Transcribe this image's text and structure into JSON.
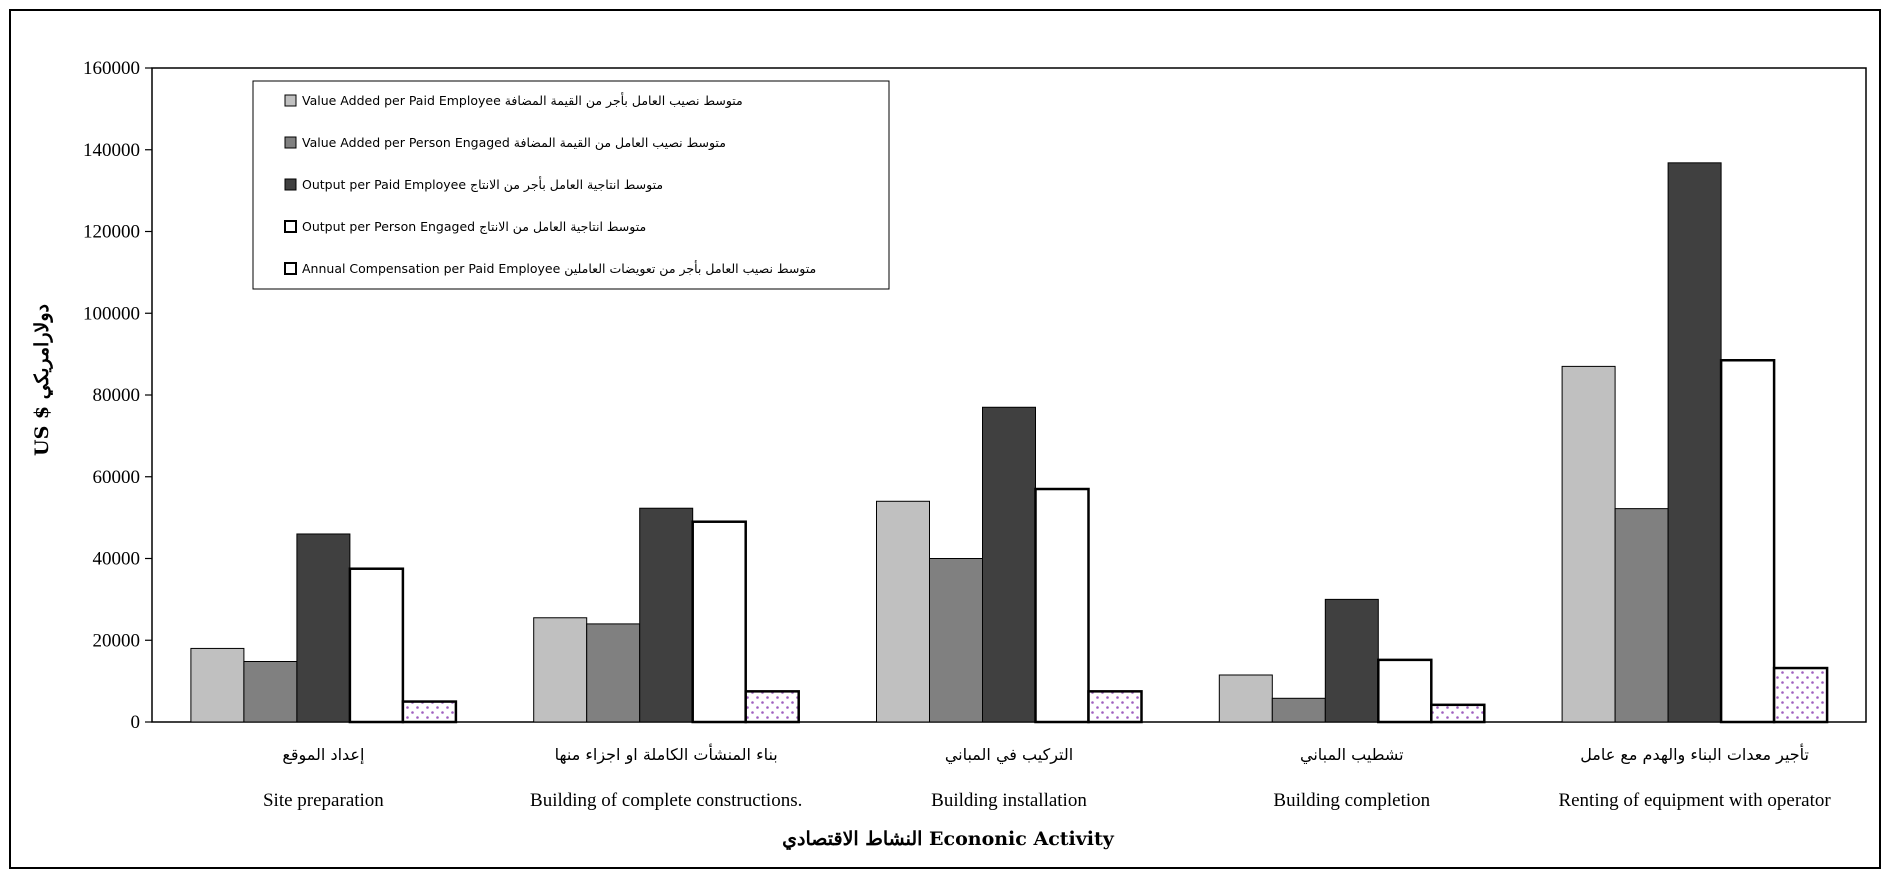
{
  "chart_data": {
    "type": "bar",
    "categories": [
      "Site preparation",
      "Building of complete constructions.",
      "Building installation",
      "Building completion",
      "Renting of equipment with operator"
    ],
    "categories_ar": [
      "إعداد الموقع",
      "بناء المنشأت الكاملة او اجزاء منها",
      "التركيب في المباني",
      "تشطيب المباني",
      "تأجير معدات البناء والهدم مع عامل"
    ],
    "series": [
      {
        "name": "Value Added per Paid  Employee  متوسط نصيب العامل  بأجر من القيمة  المضافة",
        "values": [
          18000,
          25500,
          54000,
          11500,
          87000
        ]
      },
      {
        "name": " Value Added per Person Engaged متوسط نصيب العامل من القيمة المضافة",
        "values": [
          14800,
          24000,
          40000,
          5800,
          52200
        ]
      },
      {
        "name": "Output per Paid Employee  متوسط انتاجية العامل  بأجر من الانتاج",
        "values": [
          46000,
          52300,
          77000,
          30000,
          136800
        ]
      },
      {
        "name": "Output per Person Engaged    متوسط انتاجية العامل  من الانتاج",
        "values": [
          37500,
          49000,
          57000,
          15200,
          88500
        ]
      },
      {
        "name": "Annual   Compensation  per  Paid Employee  متوسط نصيب العامل  بأجر من تعويضات   العاملين",
        "values": [
          5000,
          7500,
          7500,
          4200,
          13200
        ]
      }
    ],
    "series_colors": [
      "#c0c0c0",
      "#808080",
      "#404040",
      "#ffffff",
      "#ffffff"
    ],
    "series_patterns": [
      "solid",
      "solid",
      "solid",
      "solid",
      "dots"
    ],
    "dot_color": "#a060c0",
    "ylim": [
      0,
      160000
    ],
    "yticks": [
      0,
      20000,
      40000,
      60000,
      80000,
      100000,
      120000,
      140000,
      160000
    ],
    "ylabel": "US $ دولارامريكي",
    "xlabel": "النشاط الاقتصادي Econonic Activity",
    "grid": false,
    "legend_position": "top-left"
  }
}
